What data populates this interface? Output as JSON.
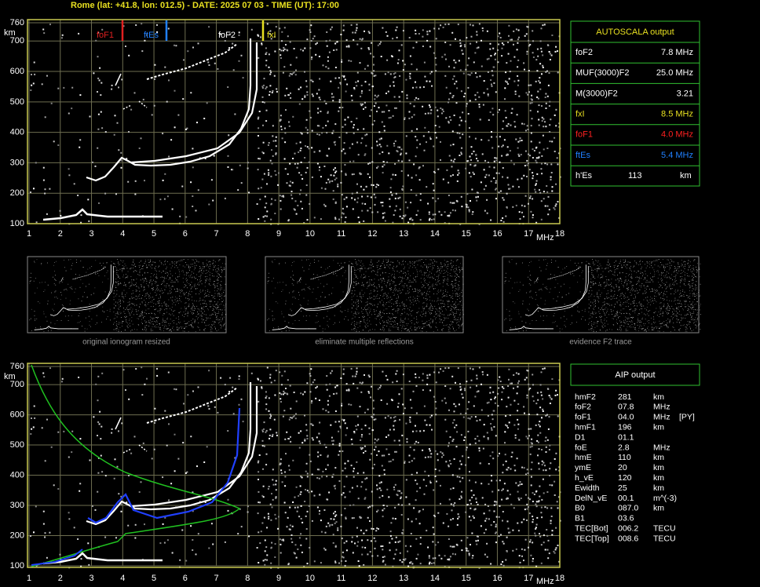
{
  "header": "Rome (lat: +41.8, lon: 012.5) - DATE: 2025 07 03 - TIME (UT): 17:00",
  "top_plot": {
    "y_unit": "km",
    "x_unit": "MHz",
    "yticks": [
      760,
      700,
      600,
      500,
      400,
      300,
      200,
      100
    ],
    "xticks": [
      1,
      2,
      3,
      4,
      5,
      6,
      7,
      8,
      9,
      10,
      11,
      12,
      13,
      14,
      15,
      16,
      17,
      18
    ],
    "markers": [
      "foF1",
      "ftEs",
      "foF2",
      "fxI"
    ]
  },
  "autoscala": {
    "title": "AUTOSCALA output",
    "rows": [
      [
        "foF2",
        "7.8 MHz"
      ],
      [
        "MUF(3000)F2",
        "25.0 MHz"
      ],
      [
        "M(3000)F2",
        "3.21"
      ],
      [
        "fxI",
        "8.5 MHz"
      ],
      [
        "foF1",
        "4.0 MHz"
      ],
      [
        "ftEs",
        "5.4 MHz"
      ],
      [
        "h'Es",
        "113",
        "km"
      ]
    ]
  },
  "thumbnails": [
    "original ionogram resized",
    "eliminate multiple reflections",
    "evidence F2 trace"
  ],
  "bottom_plot": {
    "y_unit": "km",
    "x_unit": "MHz",
    "yticks": [
      760,
      700,
      600,
      500,
      400,
      300,
      200,
      100
    ],
    "xticks": [
      1,
      2,
      3,
      4,
      5,
      6,
      7,
      8,
      9,
      10,
      11,
      12,
      13,
      14,
      15,
      16,
      17,
      18
    ]
  },
  "aip": {
    "title": "AIP output",
    "rows": [
      [
        "hmF2",
        "281",
        "km"
      ],
      [
        "foF2",
        "07.8",
        "MHz"
      ],
      [
        "foF1",
        "04.0",
        "MHz",
        "[PY]"
      ],
      [
        "hmF1",
        "196",
        "km"
      ],
      [
        "D1",
        "01.1"
      ],
      [
        "foE",
        "2.8",
        "MHz"
      ],
      [
        "hmE",
        "110",
        "km"
      ],
      [
        "ymE",
        "20",
        "km"
      ],
      [
        "h_vE",
        "120",
        "km"
      ],
      [
        "Ewidth",
        "25",
        "km"
      ],
      [
        "DelN_vE",
        "00.1",
        "m^(-3)"
      ],
      [
        "B0",
        "087.0",
        "km"
      ],
      [
        "B1",
        "03.6"
      ],
      [
        "TEC[Bot]",
        "006.2",
        "TECU"
      ],
      [
        "TEC[Top]",
        "008.6",
        "TECU"
      ]
    ]
  }
}
